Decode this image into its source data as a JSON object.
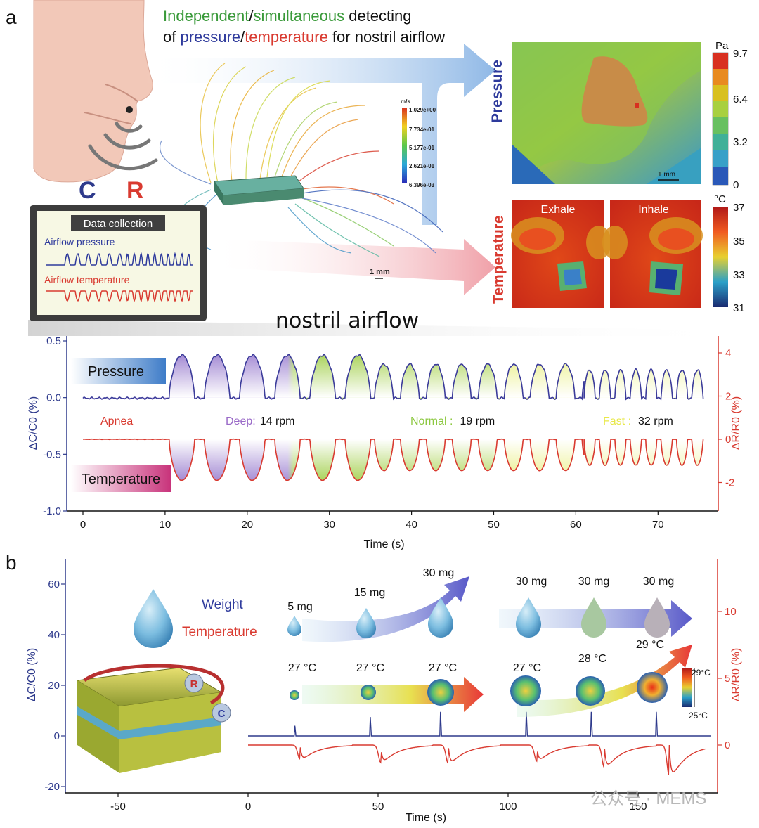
{
  "panel_a": {
    "label": "a",
    "headline": {
      "line1_word1": "Independent",
      "line1_sep": "/",
      "line1_word2": "simultaneous",
      "line1_rest": " detecting",
      "line2_pre": "of ",
      "line2_word1": "pressure",
      "line2_sep": "/",
      "line2_word2": "temperature",
      "line2_rest": " for nostril airflow"
    },
    "sensor_letters": {
      "c": "C",
      "r": "R"
    },
    "data_collection": {
      "title": "Data collection",
      "pressure_label": "Airflow pressure",
      "temperature_label": "Airflow temperature"
    },
    "flow_colorbar": {
      "unit": "m/s",
      "ticks": [
        "1.029e+00",
        "7.734e-01",
        "5.177e-01",
        "2.621e-01",
        "6.396e-03"
      ]
    },
    "flow_scale": "1 mm",
    "nostril_label": "nostril airflow",
    "pressure_map": {
      "side_label": "Pressure",
      "unit": "Pa",
      "ticks": [
        "9.7",
        "6.4",
        "3.2",
        "0"
      ],
      "scale": "1 mm"
    },
    "temperature_map": {
      "side_label": "Temperature",
      "unit": "°C",
      "ticks": [
        "37",
        "35",
        "33",
        "31"
      ],
      "exhale": "Exhale",
      "inhale": "Inhale"
    }
  },
  "panel_b": {
    "label": "b",
    "legend_weight": "Weight",
    "legend_temperature": "Temperature",
    "sensor_r": "R",
    "sensor_c": "C",
    "weights": [
      "5 mg",
      "15 mg",
      "30 mg",
      "30 mg",
      "30 mg",
      "30 mg"
    ],
    "temps": [
      "27 °C",
      "27 °C",
      "27 °C",
      "27 °C",
      "28 °C",
      "29 °C"
    ],
    "thermal_colorbar": {
      "top": "29°C",
      "bottom": "25°C"
    }
  },
  "watermark": "公众号 · MEMS",
  "chart_data": [
    {
      "id": "a-bottom",
      "type": "line",
      "xlabel": "Time (s)",
      "ylabel_left": "ΔC/C0 (%)",
      "ylabel_right": "ΔR/R0 (%)",
      "xlim": [
        -2,
        76
      ],
      "xticks": [
        0,
        10,
        20,
        30,
        40,
        50,
        60,
        70
      ],
      "ylim_left": [
        -1.0,
        0.5
      ],
      "yticks_left": [
        0.5,
        0.0,
        -0.5,
        -1.0
      ],
      "ytick_labels_left": [
        "0.5",
        "0.0",
        "-0.5",
        "-1.0"
      ],
      "ylim_right": [
        -3.5,
        4.5
      ],
      "yticks_right": [
        4,
        2,
        0,
        -2
      ],
      "grid": false,
      "series": [
        {
          "name": "Pressure",
          "axis": "left",
          "color": "#3b3b9a",
          "baseline": -0.005,
          "phases": [
            {
              "start": 0,
              "end": 10.5,
              "kind": "flat"
            },
            {
              "start": 10.5,
              "end": 35.5,
              "rate_rpm": 14,
              "peak": 0.38
            },
            {
              "start": 35.5,
              "end": 61,
              "rate_rpm": 19,
              "peak": 0.3
            },
            {
              "start": 61,
              "end": 75.5,
              "rate_rpm": 32,
              "peak": 0.25
            }
          ]
        },
        {
          "name": "Temperature",
          "axis": "right",
          "color": "#d93a30",
          "baseline": 0.0,
          "phases": [
            {
              "start": 0,
              "end": 10.5,
              "kind": "flat"
            },
            {
              "start": 10.5,
              "end": 35.5,
              "rate_rpm": 14,
              "trough": -1.9
            },
            {
              "start": 35.5,
              "end": 61,
              "rate_rpm": 19,
              "trough": -1.45
            },
            {
              "start": 61,
              "end": 75.5,
              "rate_rpm": 32,
              "trough": -1.2
            }
          ]
        }
      ],
      "annotations": [
        {
          "label": "Apnea",
          "rate": ""
        },
        {
          "label": "Deep:",
          "rate": "14 rpm"
        },
        {
          "label": "Normal :",
          "rate": "19 rpm"
        },
        {
          "label": "Fast :",
          "rate": "32 rpm"
        }
      ],
      "tags": {
        "pressure": "Pressure",
        "temperature": "Temperature"
      }
    },
    {
      "id": "b",
      "type": "line",
      "xlabel": "Time (s)",
      "ylabel_left": "ΔC/C0 (%)",
      "ylabel_right": "ΔR/R0 (%)",
      "xlim": [
        -70,
        182
      ],
      "xticks": [
        -50,
        0,
        50,
        100,
        150
      ],
      "ylim_left": [
        -22,
        68
      ],
      "yticks_left": [
        60,
        40,
        20,
        0,
        -20
      ],
      "ylim_right": [
        -3.9,
        13.8
      ],
      "yticks_right": [
        10,
        5,
        0
      ],
      "grid": false,
      "series": [
        {
          "name": "Weight",
          "axis": "left",
          "color": "#2e3a8c",
          "spikes": [
            {
              "t": 18,
              "h": 4
            },
            {
              "t": 47,
              "h": 7.5
            },
            {
              "t": 74,
              "h": 9.5
            },
            {
              "t": 107,
              "h": 9.5
            },
            {
              "t": 132,
              "h": 9.5
            },
            {
              "t": 157,
              "h": 9.5
            }
          ]
        },
        {
          "name": "Temperature",
          "axis": "right",
          "color": "#d93a30",
          "dips": [
            {
              "t": 20,
              "d": -1.1
            },
            {
              "t": 51,
              "d": -1.3
            },
            {
              "t": 77,
              "d": -1.4
            },
            {
              "t": 111,
              "d": -1.2
            },
            {
              "t": 137,
              "d": -1.7
            },
            {
              "t": 162,
              "d": -2.4
            }
          ]
        }
      ]
    }
  ]
}
